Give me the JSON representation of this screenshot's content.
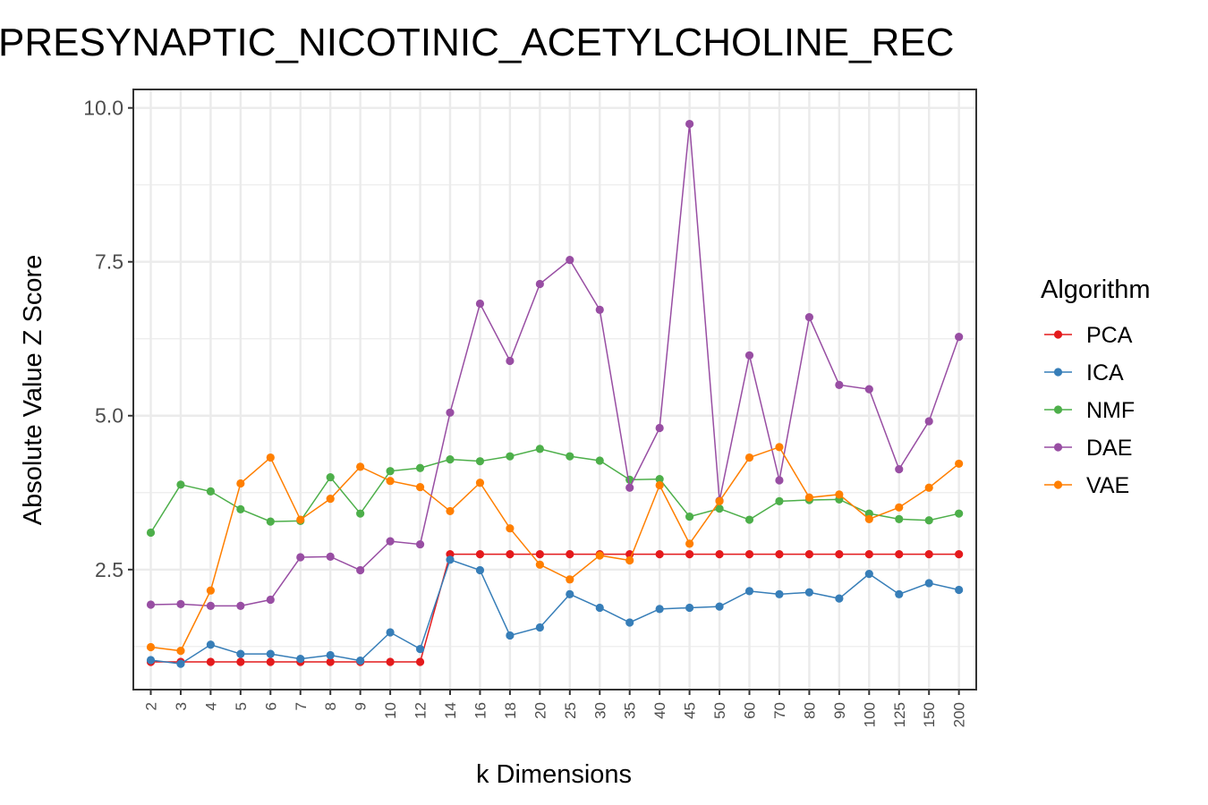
{
  "chart_data": {
    "type": "line",
    "title": "PRESYNAPTIC_NICOTINIC_ACETYLCHOLINE_REC",
    "xlabel": "k Dimensions",
    "ylabel": "Absolute Value Z Score",
    "categories": [
      "2",
      "3",
      "4",
      "5",
      "6",
      "7",
      "8",
      "9",
      "10",
      "12",
      "14",
      "16",
      "18",
      "20",
      "25",
      "30",
      "35",
      "40",
      "45",
      "50",
      "60",
      "70",
      "80",
      "90",
      "100",
      "125",
      "150",
      "200"
    ],
    "ylim": [
      0.55,
      10.3
    ],
    "yticks": [
      2.5,
      5.0,
      7.5,
      10.0
    ],
    "ytick_labels": [
      "2.5",
      "5.0",
      "7.5",
      "10.0"
    ],
    "grid": true,
    "legend_title": "Algorithm",
    "legend_position": "right",
    "series": [
      {
        "name": "PCA",
        "color": "#e41a1c",
        "values": [
          1.0,
          1.0,
          1.0,
          1.0,
          1.0,
          1.0,
          1.0,
          1.0,
          1.0,
          1.0,
          2.75,
          2.75,
          2.75,
          2.75,
          2.75,
          2.75,
          2.75,
          2.75,
          2.75,
          2.75,
          2.75,
          2.75,
          2.75,
          2.75,
          2.75,
          2.75,
          2.75,
          2.75
        ]
      },
      {
        "name": "ICA",
        "color": "#377eb8",
        "values": [
          1.03,
          0.97,
          1.28,
          1.13,
          1.13,
          1.05,
          1.11,
          1.02,
          1.48,
          1.21,
          2.66,
          2.49,
          1.43,
          1.56,
          2.1,
          1.88,
          1.64,
          1.86,
          1.88,
          1.9,
          2.15,
          2.1,
          2.13,
          2.03,
          2.43,
          2.1,
          2.28,
          2.17
        ]
      },
      {
        "name": "NMF",
        "color": "#4daf4a",
        "values": [
          3.1,
          3.88,
          3.77,
          3.48,
          3.28,
          3.29,
          4.0,
          3.41,
          4.1,
          4.15,
          4.29,
          4.26,
          4.34,
          4.46,
          4.34,
          4.27,
          3.96,
          3.97,
          3.36,
          3.49,
          3.31,
          3.61,
          3.63,
          3.64,
          3.41,
          3.32,
          3.3,
          3.41
        ]
      },
      {
        "name": "DAE",
        "color": "#984ea3",
        "values": [
          1.93,
          1.94,
          1.91,
          1.91,
          2.01,
          2.7,
          2.71,
          2.49,
          2.96,
          2.91,
          5.05,
          6.82,
          5.89,
          7.14,
          7.53,
          6.72,
          3.83,
          4.8,
          9.74,
          3.62,
          5.98,
          3.95,
          6.6,
          5.5,
          5.43,
          4.13,
          4.91,
          6.28
        ]
      },
      {
        "name": "VAE",
        "color": "#ff7f00",
        "values": [
          1.24,
          1.18,
          2.16,
          3.9,
          4.32,
          3.31,
          3.65,
          4.17,
          3.94,
          3.84,
          3.45,
          3.91,
          3.17,
          2.58,
          2.34,
          2.73,
          2.65,
          3.87,
          2.92,
          3.61,
          4.32,
          4.49,
          3.67,
          3.72,
          3.32,
          3.51,
          3.83,
          4.22
        ]
      }
    ]
  }
}
